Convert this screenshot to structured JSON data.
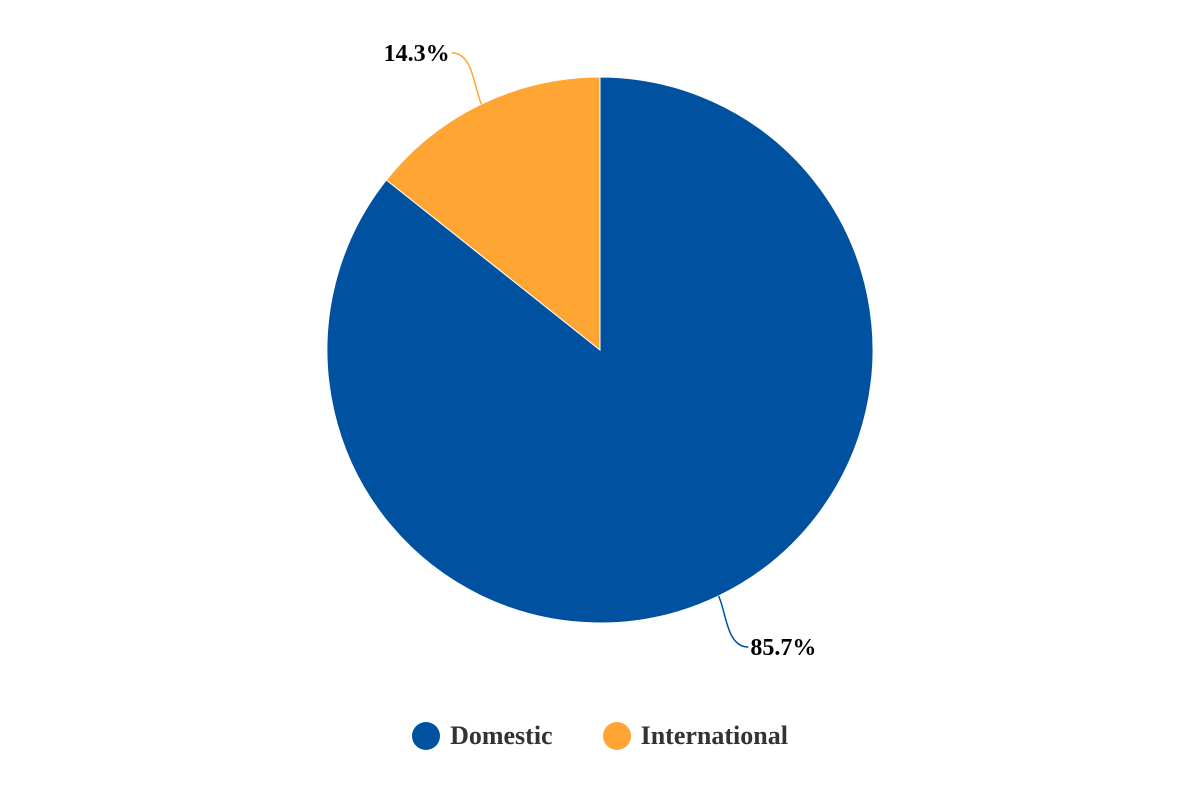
{
  "chart_data": {
    "type": "pie",
    "slices": [
      {
        "label": "Domestic",
        "value": 85.7,
        "color": "#0052a1",
        "data_label": "85.7%"
      },
      {
        "label": "International",
        "value": 14.3,
        "color": "#ffa533",
        "data_label": "14.3%"
      }
    ],
    "legend_position": "bottom"
  }
}
